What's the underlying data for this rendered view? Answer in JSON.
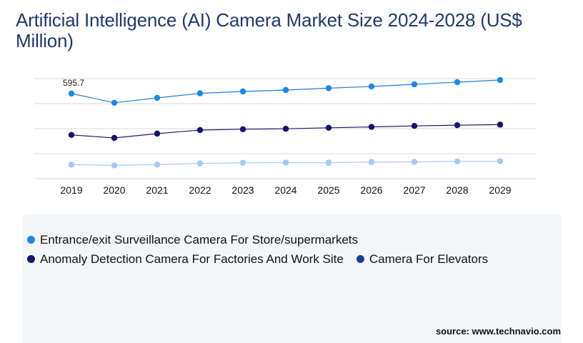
{
  "title": "Artificial Intelligence (AI) Camera Market Size 2024-2028 (US$ Million)",
  "source": "source: www.technavio.com",
  "chart_data": {
    "type": "line",
    "title": "Artificial Intelligence (AI) Camera Market Size 2024-2028 (US$ Million)",
    "categories": [
      "2019",
      "2020",
      "2021",
      "2022",
      "2023",
      "2024",
      "2025",
      "2026",
      "2027",
      "2028",
      "2029"
    ],
    "ylim": [
      0,
      700
    ],
    "grid": true,
    "legend_position": "bottom",
    "series": [
      {
        "name": "Entrance/exit Surveillance Camera For Store/supermarkets",
        "color": "#1f7fd0",
        "marker_color": "#1e88e5",
        "values": [
          595.7,
          531,
          565,
          597,
          610,
          620,
          633,
          645,
          660,
          675,
          690
        ]
      },
      {
        "name": "Anomaly Detection Camera For Factories And Work Site",
        "color": "#1a1a6e",
        "marker_color": "#14146b",
        "values": [
          306,
          285,
          315,
          340,
          346,
          349,
          356,
          362,
          369,
          374,
          378
        ]
      },
      {
        "name": "Camera For Elevators",
        "color": "#a9cbf5",
        "marker_color": "#a6c8f3",
        "legend_marker_color": "#1b3f9a",
        "values": [
          98,
          93,
          98,
          107,
          111,
          112,
          112,
          116,
          117,
          121,
          122
        ]
      }
    ],
    "data_labels": [
      {
        "series": 0,
        "index": 0,
        "text": "595.7"
      }
    ]
  }
}
